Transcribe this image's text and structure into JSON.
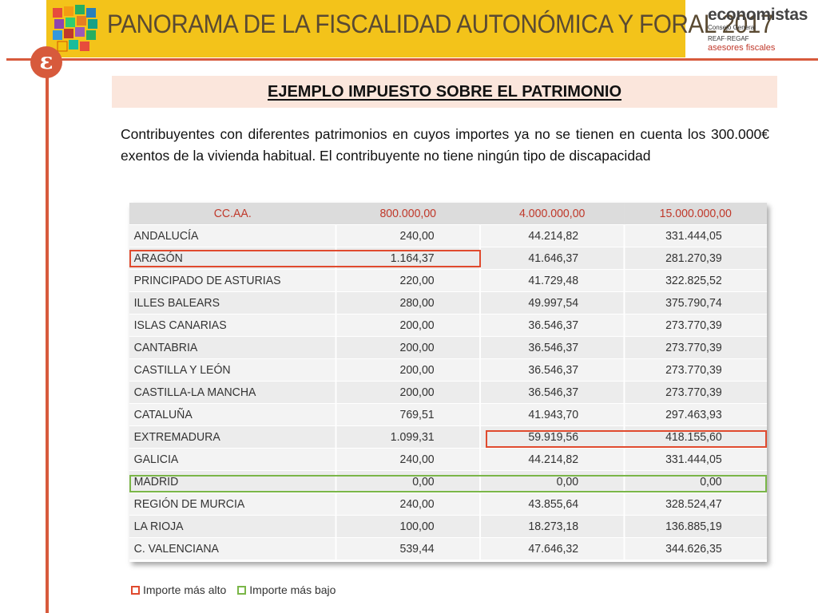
{
  "header": {
    "banner_title": "PANORAMA DE LA FISCALIDAD AUTONÓMICA Y FORAL 2017",
    "logo_main": "economistas",
    "logo_sub": "Consejo General",
    "logo_org": "REAF·REGAF",
    "logo_tagline": "asesores fiscales",
    "emblem_glyph": "ɛ",
    "colors": {
      "banner": "#f3c31a",
      "accent": "#d75a3c"
    }
  },
  "section": {
    "title": "EJEMPLO IMPUESTO SOBRE EL PATRIMONIO",
    "intro": "Contribuyentes con diferentes patrimonios en cuyos importes ya no se tienen en cuenta los 300.000€ exentos de la vivienda habitual. El contribuyente no tiene ningún tipo de discapacidad"
  },
  "table": {
    "headers": [
      "CC.AA.",
      "800.000,00",
      "4.000.000,00",
      "15.000.000,00"
    ],
    "rows": [
      [
        "ANDALUCÍA",
        "240,00",
        "44.214,82",
        "331.444,05"
      ],
      [
        "ARAGÓN",
        "1.164,37",
        "41.646,37",
        "281.270,39"
      ],
      [
        "PRINCIPADO DE ASTURIAS",
        "220,00",
        "41.729,48",
        "322.825,52"
      ],
      [
        "ILLES BALEARS",
        "280,00",
        "49.997,54",
        "375.790,74"
      ],
      [
        "ISLAS CANARIAS",
        "200,00",
        "36.546,37",
        "273.770,39"
      ],
      [
        "CANTABRIA",
        "200,00",
        "36.546,37",
        "273.770,39"
      ],
      [
        "CASTILLA Y LEÓN",
        "200,00",
        "36.546,37",
        "273.770,39"
      ],
      [
        "CASTILLA-LA MANCHA",
        "200,00",
        "36.546,37",
        "273.770,39"
      ],
      [
        "CATALUÑA",
        "769,51",
        "41.943,70",
        "297.463,93"
      ],
      [
        "EXTREMADURA",
        "1.099,31",
        "59.919,56",
        "418.155,60"
      ],
      [
        "GALICIA",
        "240,00",
        "44.214,82",
        "331.444,05"
      ],
      [
        "MADRID",
        "0,00",
        "0,00",
        "0,00"
      ],
      [
        "REGIÓN DE MURCIA",
        "240,00",
        "43.855,64",
        "328.524,47"
      ],
      [
        "LA RIOJA",
        "100,00",
        "18.273,18",
        "136.885,19"
      ],
      [
        "C. VALENCIANA",
        "539,44",
        "47.646,32",
        "344.626,35"
      ]
    ],
    "highlight_colors": {
      "highest": "#e04a2e",
      "lowest": "#7ab648"
    }
  },
  "legend": {
    "highest_label": "Importe más alto",
    "lowest_label": "Importe más bajo"
  }
}
